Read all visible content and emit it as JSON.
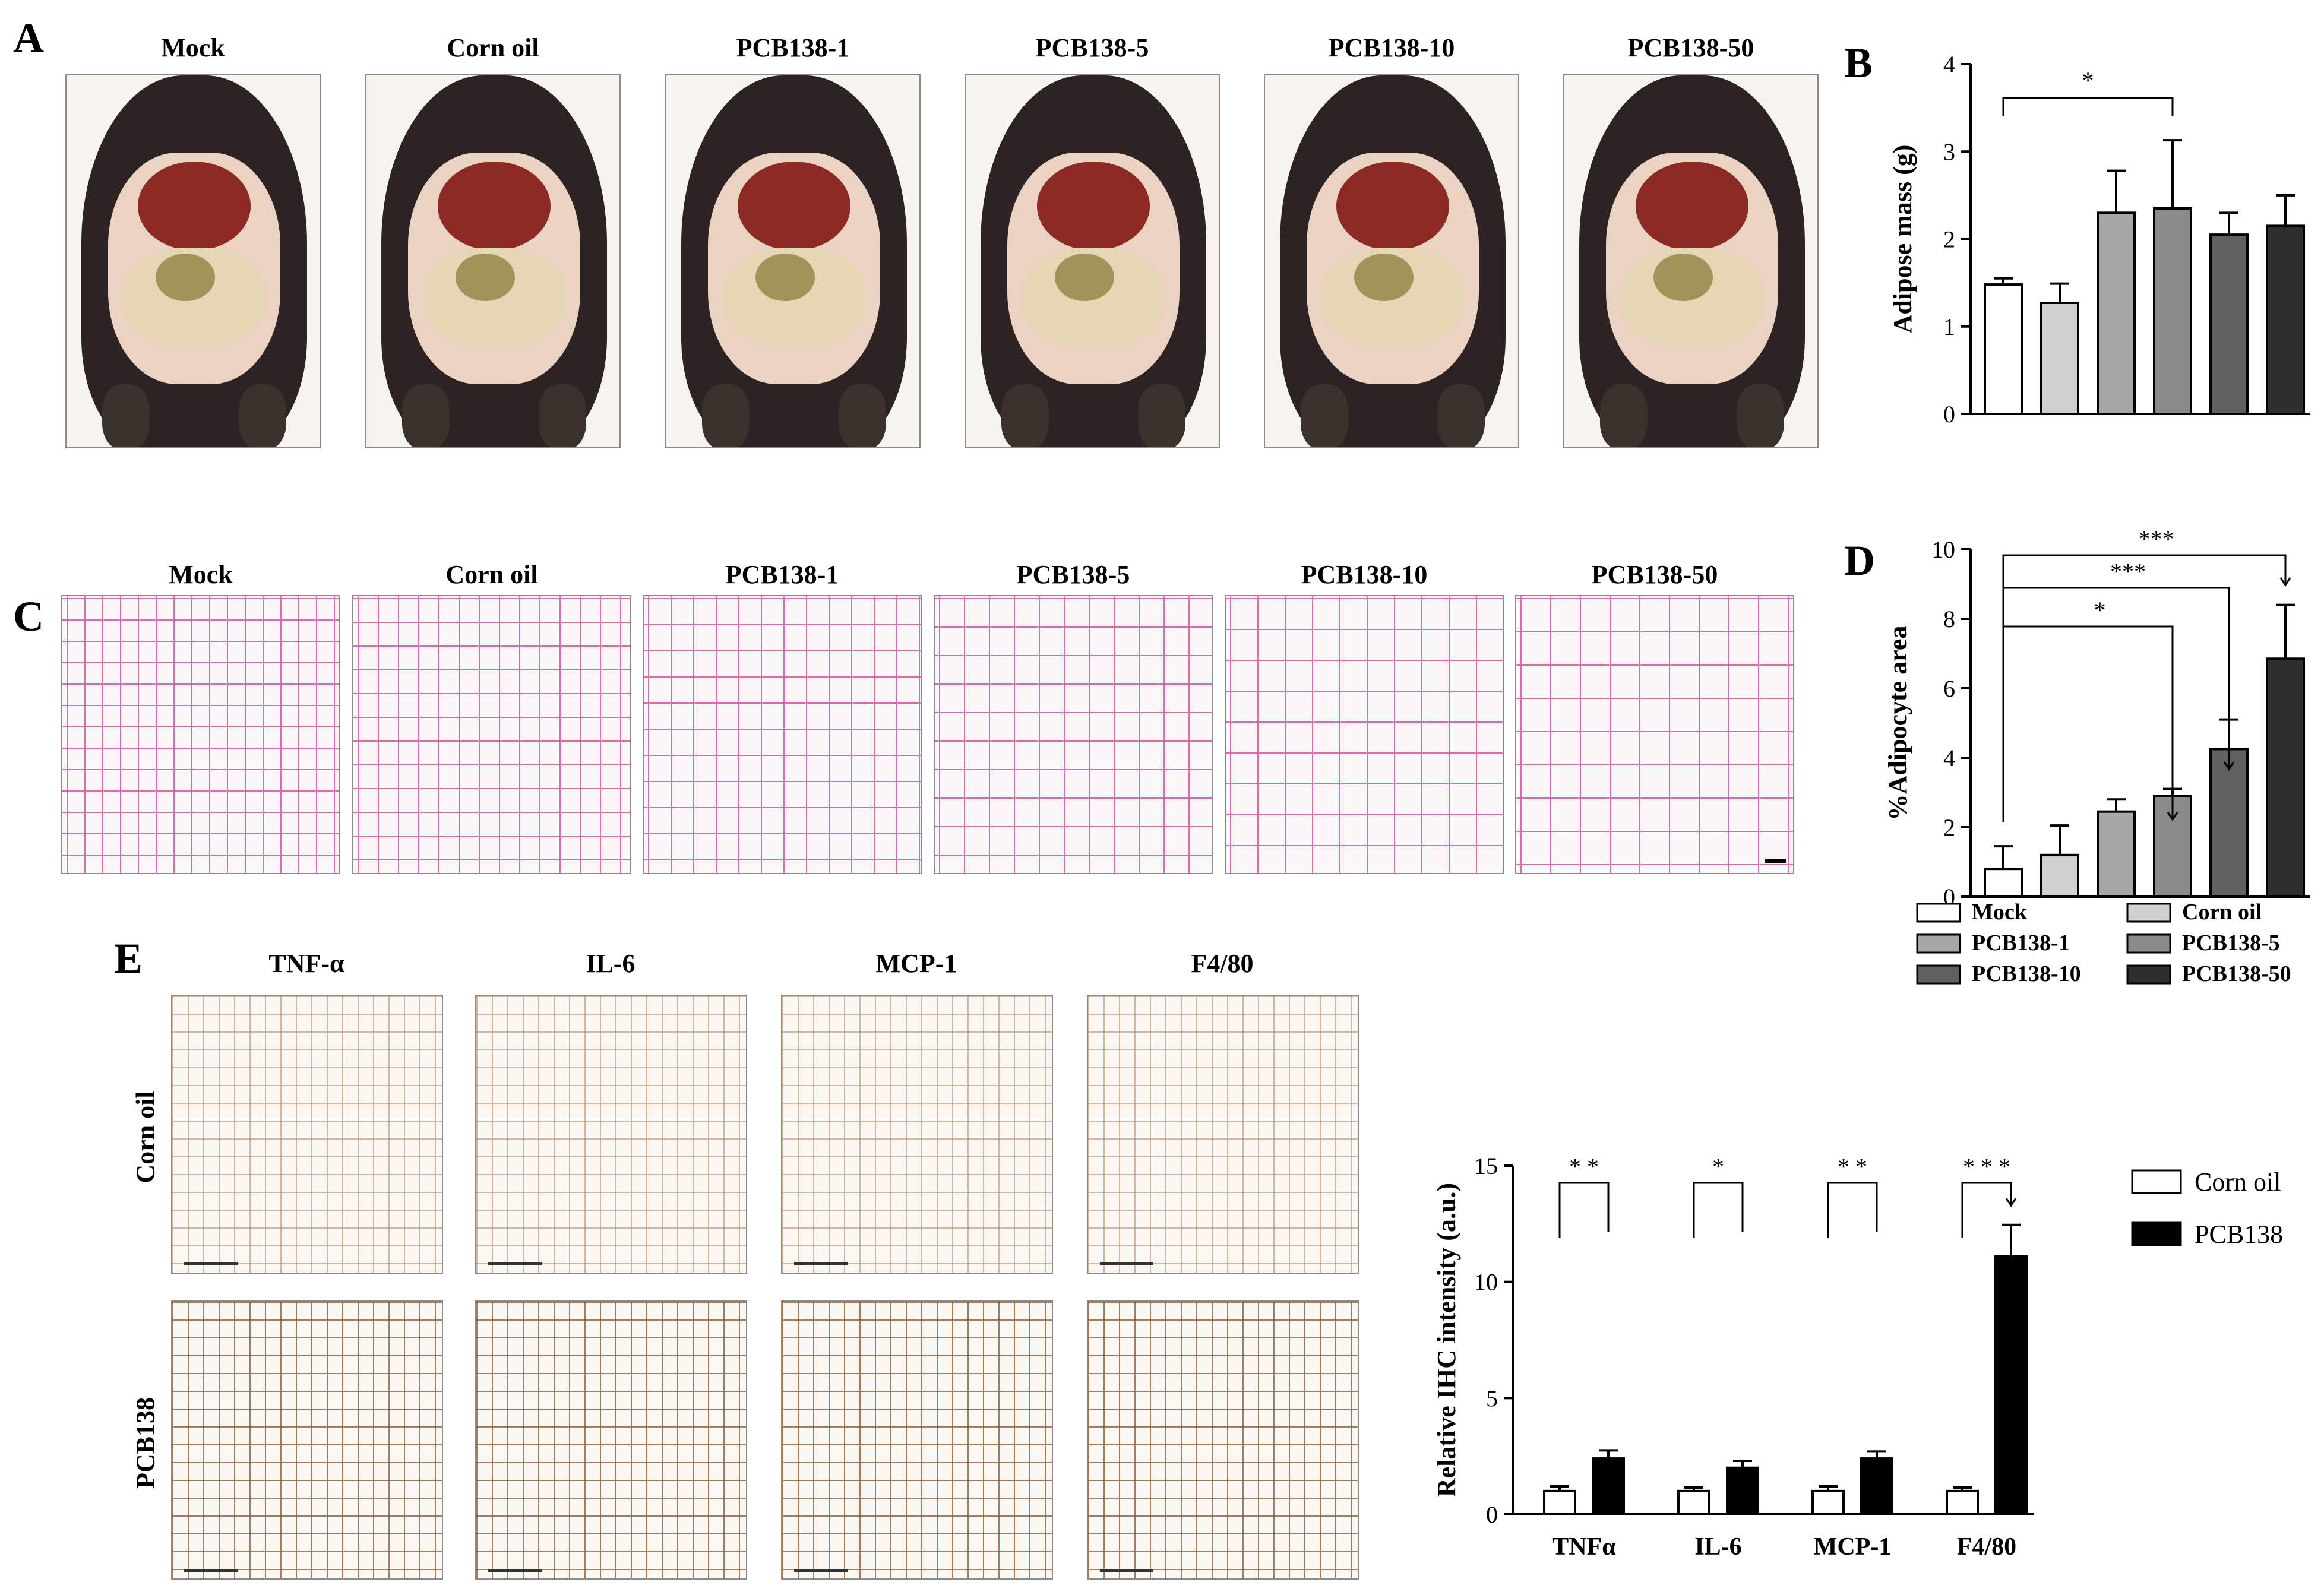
{
  "panel_letters": {
    "a": "A",
    "b": "B",
    "c": "C",
    "d": "D",
    "e": "E"
  },
  "groups": [
    "Mock",
    "Corn oil",
    "PCB138-1",
    "PCB138-5",
    "PCB138-10",
    "PCB138-50"
  ],
  "ihc": {
    "markers": [
      "TNF-α",
      "IL-6",
      "MCP-1",
      "F4/80"
    ],
    "rows": [
      "Corn oil",
      "PCB138"
    ]
  },
  "colors": {
    "mock": "#ffffff",
    "corn_oil": "#d0d0d0",
    "pcb1": "#a6a6a6",
    "pcb5": "#8a8a8a",
    "pcb10": "#606060",
    "pcb50": "#2e2e2e",
    "pcb138": "#000000",
    "he_stain": "#d66fb0",
    "ihc_stain": "#b0835a"
  },
  "chart_data": [
    {
      "type": "bar",
      "panel": "B",
      "categories": [
        "Mock",
        "Corn oil",
        "PCB138-1",
        "PCB138-5",
        "PCB138-10",
        "PCB138-50"
      ],
      "values": [
        1.48,
        1.27,
        2.3,
        2.35,
        2.05,
        2.15
      ],
      "errors": [
        0.07,
        0.22,
        0.48,
        0.78,
        0.25,
        0.35
      ],
      "ylabel": "Adipose mass (g)",
      "ylim": [
        0,
        4
      ],
      "yticks": [
        "0",
        "1",
        "2",
        "3",
        "4"
      ],
      "significance": [
        {
          "from": 0,
          "to": 3,
          "label": "*"
        }
      ]
    },
    {
      "type": "bar",
      "panel": "D",
      "categories": [
        "Mock",
        "Corn oil",
        "PCB138-1",
        "PCB138-5",
        "PCB138-10",
        "PCB138-50"
      ],
      "values": [
        0.8,
        1.2,
        2.45,
        2.9,
        4.25,
        6.85
      ],
      "errors": [
        0.65,
        0.85,
        0.35,
        0.2,
        0.85,
        1.55
      ],
      "ylabel": "%Adipocyte area",
      "ylim": [
        0,
        10
      ],
      "yticks": [
        "0",
        "2",
        "4",
        "6",
        "8",
        "10"
      ],
      "significance": [
        {
          "from": 0,
          "to": 3,
          "label": "*"
        },
        {
          "from": 0,
          "to": 4,
          "label": "***"
        },
        {
          "from": 0,
          "to": 5,
          "label": "***"
        }
      ],
      "legend": [
        "Mock",
        "Corn oil",
        "PCB138-1",
        "PCB138-5",
        "PCB138-10",
        "PCB138-50"
      ]
    },
    {
      "type": "bar",
      "panel": "E",
      "categories": [
        "TNFα",
        "IL-6",
        "MCP-1",
        "F4/80"
      ],
      "series": [
        {
          "name": "Corn oil",
          "values": [
            1.0,
            1.0,
            1.0,
            1.0
          ],
          "errors": [
            0.2,
            0.15,
            0.2,
            0.15
          ]
        },
        {
          "name": "PCB138",
          "values": [
            2.4,
            2.0,
            2.4,
            11.1
          ],
          "errors": [
            0.35,
            0.3,
            0.3,
            1.35
          ]
        }
      ],
      "ylabel": "Relative IHC intensity (a.u.)",
      "ylim": [
        0,
        15
      ],
      "yticks": [
        "0",
        "5",
        "10",
        "15"
      ],
      "significance": [
        "* *",
        "*",
        "* *",
        "* * *"
      ]
    }
  ]
}
